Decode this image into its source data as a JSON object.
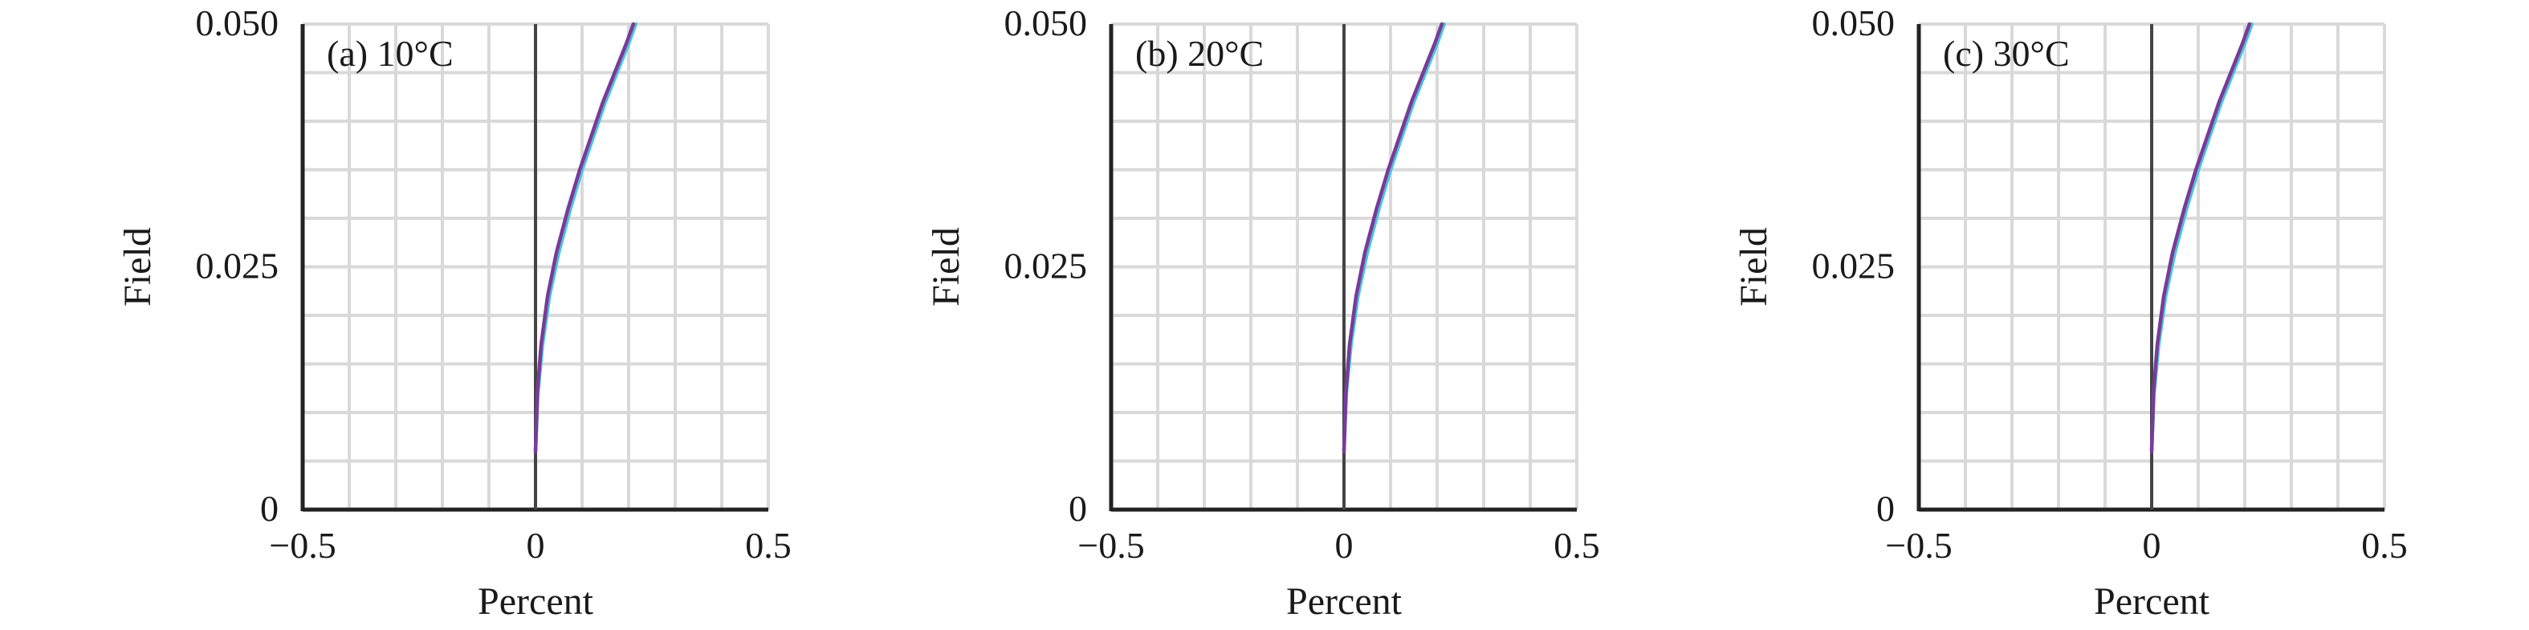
{
  "chart_data": [
    {
      "type": "line",
      "panel_label": "(a) 10°C",
      "xlabel": "Percent",
      "ylabel": "Field",
      "xlim": [
        -0.5,
        0.5
      ],
      "ylim": [
        0,
        0.05
      ],
      "xticks": [
        "−0.5",
        "0",
        "0.5"
      ],
      "yticks": [
        "0",
        "0.025",
        "0.050"
      ],
      "grid": true,
      "series": [
        {
          "color": "#48c6d6",
          "x": [
            0,
            0.005,
            0.015,
            0.03,
            0.05,
            0.075,
            0.1,
            0.125,
            0.15,
            0.175,
            0.2,
            0.215
          ],
          "y": [
            0.006,
            0.012,
            0.017,
            0.022,
            0.0265,
            0.031,
            0.035,
            0.0385,
            0.042,
            0.045,
            0.048,
            0.05
          ]
        },
        {
          "color": "#7a3a9a",
          "x": [
            0,
            0.004,
            0.012,
            0.026,
            0.045,
            0.07,
            0.095,
            0.12,
            0.145,
            0.17,
            0.195,
            0.21
          ],
          "y": [
            0.006,
            0.012,
            0.017,
            0.022,
            0.0265,
            0.031,
            0.035,
            0.0385,
            0.042,
            0.045,
            0.048,
            0.05
          ]
        }
      ]
    },
    {
      "type": "line",
      "panel_label": "(b) 20°C",
      "xlabel": "Percent",
      "ylabel": "Field",
      "xlim": [
        -0.5,
        0.5
      ],
      "ylim": [
        0,
        0.05
      ],
      "xticks": [
        "−0.5",
        "0",
        "0.5"
      ],
      "yticks": [
        "0",
        "0.025",
        "0.050"
      ],
      "grid": true,
      "series": [
        {
          "color": "#48c6d6",
          "x": [
            0,
            0.005,
            0.015,
            0.03,
            0.05,
            0.075,
            0.1,
            0.125,
            0.15,
            0.175,
            0.2,
            0.215
          ],
          "y": [
            0.006,
            0.012,
            0.017,
            0.022,
            0.0265,
            0.031,
            0.035,
            0.0385,
            0.042,
            0.045,
            0.048,
            0.05
          ]
        },
        {
          "color": "#7a3a9a",
          "x": [
            0,
            0.004,
            0.012,
            0.026,
            0.045,
            0.07,
            0.095,
            0.12,
            0.145,
            0.17,
            0.195,
            0.21
          ],
          "y": [
            0.006,
            0.012,
            0.017,
            0.022,
            0.0265,
            0.031,
            0.035,
            0.0385,
            0.042,
            0.045,
            0.048,
            0.05
          ]
        }
      ]
    },
    {
      "type": "line",
      "panel_label": "(c) 30°C",
      "xlabel": "Percent",
      "ylabel": "Field",
      "xlim": [
        -0.5,
        0.5
      ],
      "ylim": [
        0,
        0.05
      ],
      "xticks": [
        "−0.5",
        "0",
        "0.5"
      ],
      "yticks": [
        "0",
        "0.025",
        "0.050"
      ],
      "grid": true,
      "series": [
        {
          "color": "#48c6d6",
          "x": [
            0,
            0.005,
            0.015,
            0.03,
            0.05,
            0.075,
            0.1,
            0.125,
            0.15,
            0.175,
            0.2,
            0.215
          ],
          "y": [
            0.006,
            0.012,
            0.017,
            0.022,
            0.0265,
            0.031,
            0.035,
            0.0385,
            0.042,
            0.045,
            0.048,
            0.05
          ]
        },
        {
          "color": "#7a3a9a",
          "x": [
            0,
            0.004,
            0.012,
            0.026,
            0.045,
            0.07,
            0.095,
            0.12,
            0.145,
            0.17,
            0.195,
            0.21
          ],
          "y": [
            0.006,
            0.012,
            0.017,
            0.022,
            0.0265,
            0.031,
            0.035,
            0.0385,
            0.042,
            0.045,
            0.048,
            0.05
          ]
        }
      ]
    }
  ]
}
